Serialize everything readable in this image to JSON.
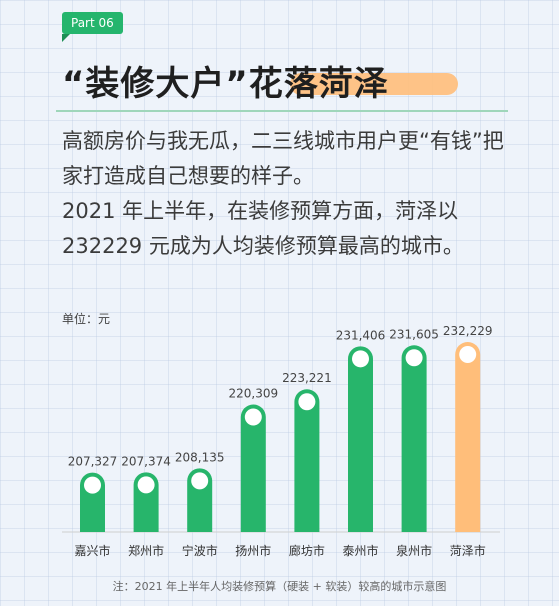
{
  "tag": "Part 06",
  "headline": "“装修大户”花落菏泽",
  "paragraphs": [
    "高额房价与我无瓜，二三线城市用户更“有钱”把家打造成自己想要的样子。",
    "2021 年上半年，在装修预算方面，菏泽以 232229 元成为人均装修预算最高的城市。"
  ],
  "colors": {
    "bar_default": "#27b56b",
    "bar_highlight": "#ffbe7a",
    "accent": "#25b56d"
  },
  "chart_data": {
    "type": "bar",
    "unit_label": "单位：元",
    "categories": [
      "嘉兴市",
      "郑州市",
      "宁波市",
      "扬州市",
      "廊坊市",
      "泰州市",
      "泉州市",
      "菏泽市"
    ],
    "values": [
      207327,
      207374,
      208135,
      220309,
      223221,
      231406,
      231605,
      232229
    ],
    "value_labels": [
      "207,327",
      "207,374",
      "208,135",
      "220,309",
      "223,221",
      "231,406",
      "231,605",
      "232,229"
    ],
    "highlight_index": 7
  },
  "footnote": "注：2021 年上半年人均装修预算（硬装 + 软装）较高的城市示意图"
}
